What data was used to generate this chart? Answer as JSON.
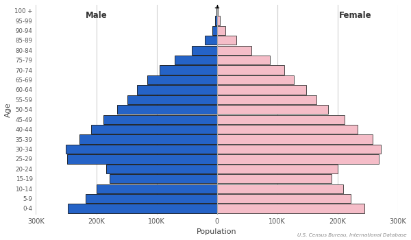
{
  "xlabel": "Population",
  "ylabel": "Age",
  "age_groups": [
    "0-4",
    "5-9",
    "10-14",
    "15-19",
    "20-24",
    "25-29",
    "30-34",
    "35-39",
    "40-44",
    "45-49",
    "50-54",
    "55-59",
    "60-64",
    "65-69",
    "70-74",
    "75-79",
    "80-84",
    "85-89",
    "90-94",
    "95-99",
    "100 +"
  ],
  "male": [
    247000,
    218000,
    200000,
    178000,
    183000,
    248000,
    250000,
    228000,
    208000,
    188000,
    165000,
    148000,
    132000,
    115000,
    95000,
    70000,
    42000,
    20000,
    8000,
    3000,
    1000
  ],
  "female": [
    245000,
    222000,
    210000,
    190000,
    200000,
    268000,
    272000,
    258000,
    233000,
    212000,
    185000,
    165000,
    148000,
    128000,
    112000,
    88000,
    57000,
    32000,
    14000,
    5500,
    1800
  ],
  "male_color": "#2563c7",
  "female_color": "#f5bdc8",
  "male_edge_color": "#111111",
  "female_edge_color": "#333333",
  "bar_edge_width": 0.6,
  "male_label": "Male",
  "female_label": "Female",
  "xlim": 300000,
  "tick_values": [
    -300000,
    -200000,
    -100000,
    0,
    100000,
    200000,
    300000
  ],
  "tick_labels": [
    "300K",
    "200K",
    "100K",
    "0",
    "100K",
    "200K",
    "300K"
  ],
  "background_color": "#ffffff",
  "grid_color": "#d0d0d0",
  "source_text": "U.S. Census Bureau, International Database"
}
